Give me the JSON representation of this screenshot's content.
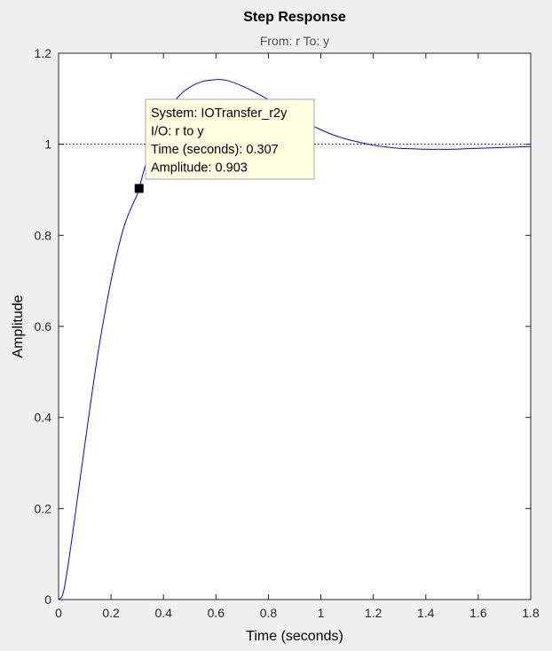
{
  "chart_data": {
    "type": "line",
    "title": "Step Response",
    "subtitle": "From: r  To: y",
    "xlabel": "Time (seconds)",
    "ylabel": "Amplitude",
    "xlim": [
      0,
      1.8
    ],
    "ylim": [
      0,
      1.2
    ],
    "xticks": [
      "0",
      "0.2",
      "0.4",
      "0.6",
      "0.8",
      "1",
      "1.2",
      "1.4",
      "1.6",
      "1.8"
    ],
    "yticks": [
      "0",
      "0.2",
      "0.4",
      "0.6",
      "0.8",
      "1",
      "1.2"
    ],
    "grid": false,
    "reference_line": {
      "y": 1,
      "style": "dotted",
      "color": "#000000"
    },
    "series": [
      {
        "color": "#0000ff",
        "x": [
          0,
          0.02,
          0.05,
          0.1,
          0.15,
          0.2,
          0.25,
          0.3,
          0.307,
          0.35,
          0.4,
          0.45,
          0.5,
          0.55,
          0.6,
          0.62,
          0.65,
          0.7,
          0.75,
          0.8,
          0.85,
          0.9,
          0.95,
          1.0,
          1.05,
          1.1,
          1.15,
          1.2,
          1.25,
          1.3,
          1.35,
          1.4,
          1.45,
          1.5,
          1.55,
          1.6,
          1.65,
          1.7,
          1.75,
          1.8
        ],
        "y": [
          0,
          0.02,
          0.13,
          0.34,
          0.54,
          0.7,
          0.82,
          0.89,
          0.903,
          0.99,
          1.05,
          1.1,
          1.125,
          1.138,
          1.142,
          1.142,
          1.139,
          1.128,
          1.114,
          1.098,
          1.08,
          1.062,
          1.046,
          1.032,
          1.02,
          1.011,
          1.004,
          0.998,
          0.994,
          0.991,
          0.99,
          0.989,
          0.989,
          0.989,
          0.99,
          0.991,
          0.992,
          0.993,
          0.994,
          0.995
        ]
      }
    ],
    "datatip": {
      "x": 0.307,
      "y": 0.903,
      "lines": [
        "System: IOTransfer_r2y",
        "I/O: r to y",
        "Time (seconds): 0.307",
        "Amplitude: 0.903"
      ]
    }
  },
  "colors": {
    "figure_bg": "#f0f0f0",
    "axes_bg": "#ffffff",
    "line": "#0000ff",
    "tooltip_bg": "#ffffe1"
  }
}
